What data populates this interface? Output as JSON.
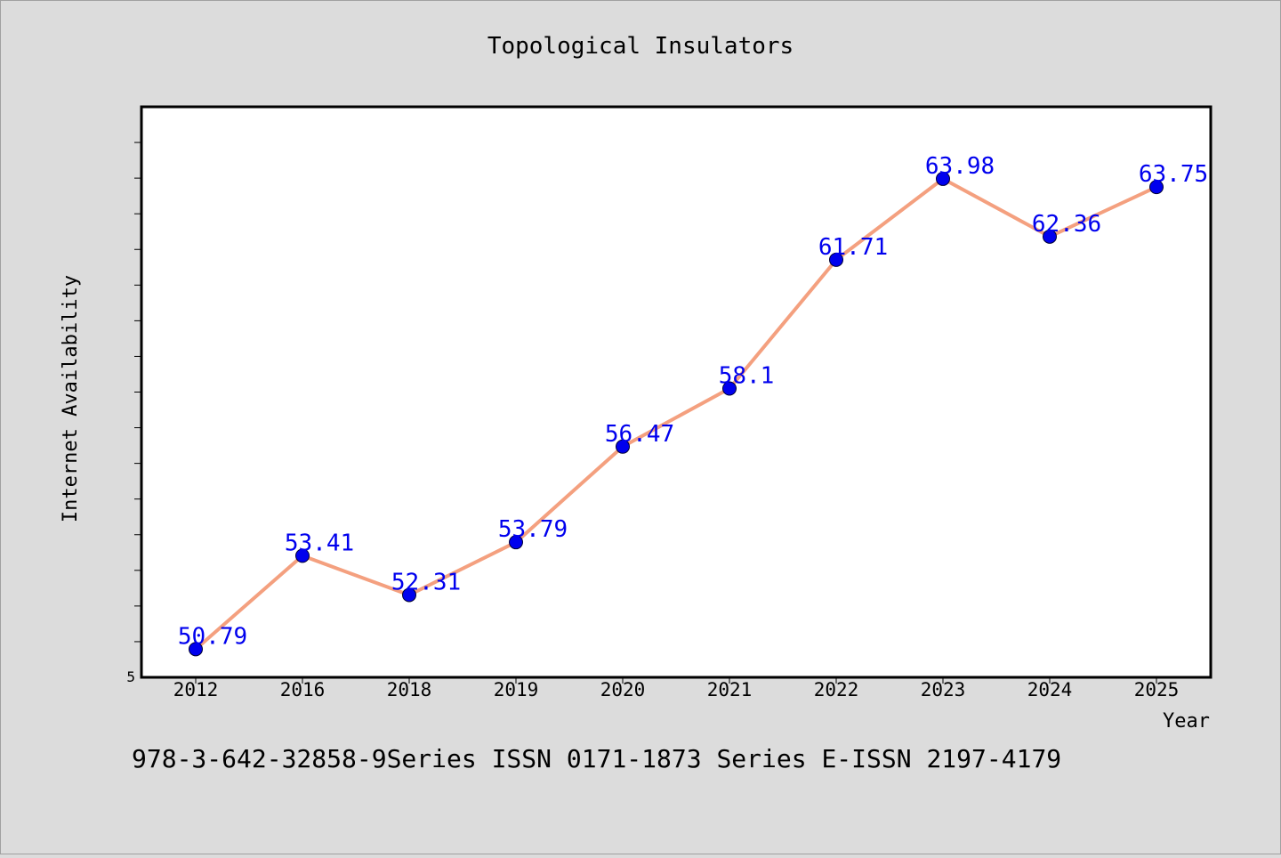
{
  "chart_data": {
    "type": "line",
    "title": "Topological Insulators",
    "xlabel": "Year",
    "ylabel": "Internet Availability",
    "categories": [
      "2012",
      "2016",
      "2018",
      "2019",
      "2020",
      "2021",
      "2022",
      "2023",
      "2024",
      "2025"
    ],
    "series": [
      {
        "values": [
          50.79,
          53.41,
          52.31,
          53.79,
          56.47,
          58.1,
          61.71,
          63.98,
          62.36,
          63.75
        ]
      }
    ],
    "data_labels": [
      "50.79",
      "53.41",
      "52.31",
      "53.79",
      "56.47",
      "58.1",
      "61.71",
      "63.98",
      "62.36",
      "63.75"
    ],
    "y_tick_labels": [
      "5"
    ],
    "ylim": [
      50.0,
      66.0
    ],
    "grid": false,
    "colors": {
      "line": "#f4a07f",
      "marker": "#0000ee",
      "label": "#0000ee",
      "background": "#dcdcdc",
      "plot": "#ffffff"
    }
  },
  "footer": "978-3-642-32858-9Series ISSN 0171-1873 Series E-ISSN 2197-4179"
}
